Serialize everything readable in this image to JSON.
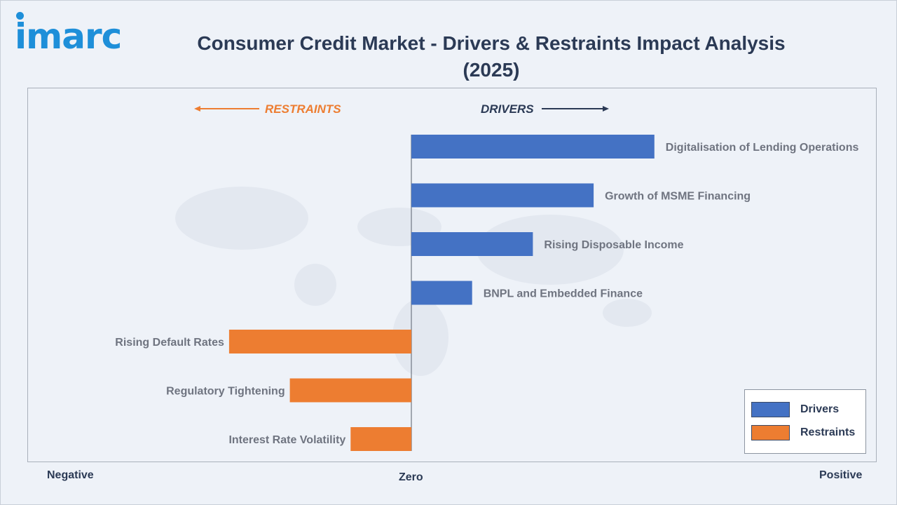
{
  "header": {
    "logo_text": "imarc",
    "title_line1": "Consumer Credit Market - Drivers & Restraints Impact Analysis",
    "title_line2": "(2025)"
  },
  "chart_data": {
    "type": "bar",
    "orientation": "horizontal",
    "title": "Consumer Credit Market - Drivers & Restraints Impact Analysis (2025)",
    "categories": [
      "Digitalisation of Lending Operations",
      "Growth of MSME Financing",
      "Rising Disposable Income",
      "BNPL and Embedded Finance",
      "Rising Default Rates",
      "Regulatory Tightening",
      "Interest Rate Volatility"
    ],
    "series": [
      {
        "name": "Drivers",
        "color": "#4472c4",
        "values": [
          4,
          3,
          2,
          1,
          null,
          null,
          null
        ]
      },
      {
        "name": "Restraints",
        "color": "#ed7d31",
        "values": [
          null,
          null,
          null,
          null,
          -3,
          -2,
          -1
        ]
      }
    ],
    "xlim": [
      -6.5,
      6.5
    ],
    "x_axis_labels": {
      "negative": "Negative",
      "zero": "Zero",
      "positive": "Positive"
    },
    "direction_labels": {
      "restraints": "RESTRAINTS",
      "drivers": "DRIVERS"
    },
    "legend": {
      "position": "bottom-right",
      "items": [
        {
          "label": "Drivers",
          "color": "#4472c4"
        },
        {
          "label": "Restraints",
          "color": "#ed7d31"
        }
      ]
    },
    "grid": false
  }
}
